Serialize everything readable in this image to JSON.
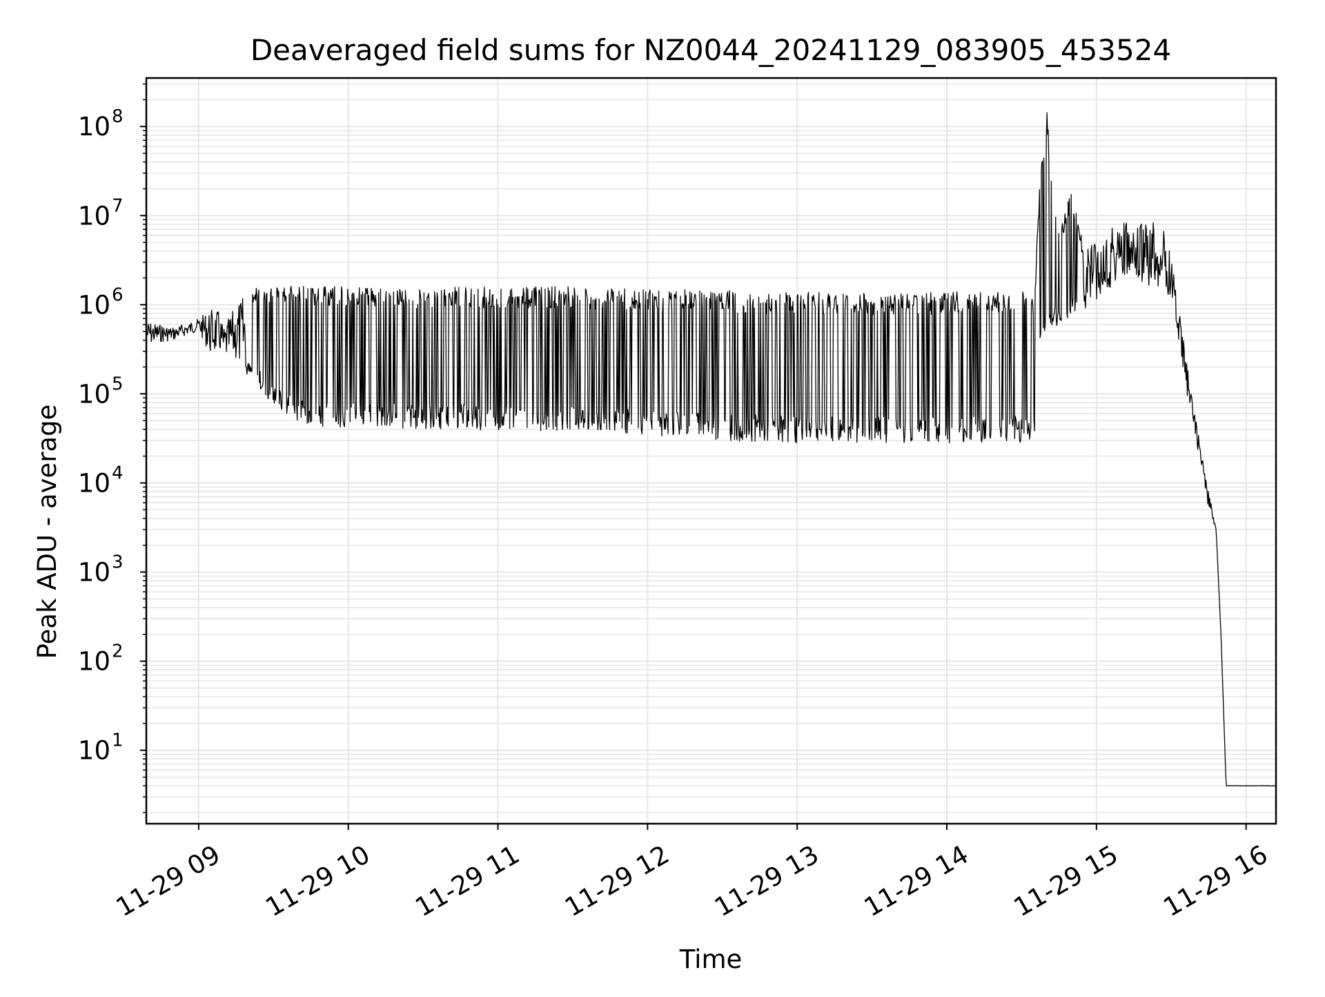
{
  "chart_data": {
    "type": "line",
    "title": "Deaveraged field sums for NZ0044_20241129_083905_453524",
    "xlabel": "Time",
    "ylabel": "Peak ADU - average",
    "y_scale": "log",
    "ylim": [
      1.5,
      350000000
    ],
    "xlim": [
      "2024-11-29T08:39",
      "2024-11-29T16:12"
    ],
    "grid": true,
    "line_color": "#000000",
    "grid_color": "#e6e6e6",
    "x_ticks": [
      {
        "value": "2024-11-29T09:00",
        "label": "11-29 09"
      },
      {
        "value": "2024-11-29T10:00",
        "label": "11-29 10"
      },
      {
        "value": "2024-11-29T11:00",
        "label": "11-29 11"
      },
      {
        "value": "2024-11-29T12:00",
        "label": "11-29 12"
      },
      {
        "value": "2024-11-29T13:00",
        "label": "11-29 13"
      },
      {
        "value": "2024-11-29T14:00",
        "label": "11-29 14"
      },
      {
        "value": "2024-11-29T15:00",
        "label": "11-29 15"
      },
      {
        "value": "2024-11-29T16:00",
        "label": "11-29 16"
      }
    ],
    "y_ticks": [
      {
        "value": 10,
        "base": "10",
        "exp": "1"
      },
      {
        "value": 100,
        "base": "10",
        "exp": "2"
      },
      {
        "value": 1000,
        "base": "10",
        "exp": "3"
      },
      {
        "value": 10000,
        "base": "10",
        "exp": "4"
      },
      {
        "value": 100000,
        "base": "10",
        "exp": "5"
      },
      {
        "value": 1000000,
        "base": "10",
        "exp": "6"
      },
      {
        "value": 10000000,
        "base": "10",
        "exp": "7"
      },
      {
        "value": 100000000,
        "base": "10",
        "exp": "8"
      }
    ],
    "series": [
      {
        "x": [
          "2024-11-29T08:39",
          "2024-11-29T08:45",
          "2024-11-29T08:50",
          "2024-11-29T08:55",
          "2024-11-29T09:00",
          "2024-11-29T09:05",
          "2024-11-29T09:08",
          "2024-11-29T09:10",
          "2024-11-29T09:15",
          "2024-11-29T09:20",
          "2024-11-29T09:25",
          "2024-11-29T09:30",
          "2024-11-29T09:35",
          "2024-11-29T09:40",
          "2024-11-29T09:45",
          "2024-11-29T09:50",
          "2024-11-29T09:55",
          "2024-11-29T10:00",
          "2024-11-29T10:30",
          "2024-11-29T11:00",
          "2024-11-29T11:30",
          "2024-11-29T12:00",
          "2024-11-29T12:30",
          "2024-11-29T13:00",
          "2024-11-29T13:30",
          "2024-11-29T14:00",
          "2024-11-29T14:30",
          "2024-11-29T14:35",
          "2024-11-29T14:38",
          "2024-11-29T14:40",
          "2024-11-29T14:45",
          "2024-11-29T14:50",
          "2024-11-29T14:55",
          "2024-11-29T15:00",
          "2024-11-29T15:05",
          "2024-11-29T15:10",
          "2024-11-29T15:15",
          "2024-11-29T15:20",
          "2024-11-29T15:25",
          "2024-11-29T15:30",
          "2024-11-29T15:35",
          "2024-11-29T15:40",
          "2024-11-29T15:45",
          "2024-11-29T15:48",
          "2024-11-29T15:50",
          "2024-11-29T15:52",
          "2024-11-29T15:53",
          "2024-11-29T15:54",
          "2024-11-29T15:55",
          "2024-11-29T16:00",
          "2024-11-29T16:12"
        ],
        "y_low": [
          350000,
          380000,
          400000,
          450000,
          500000,
          260000,
          300000,
          250000,
          230000,
          150000,
          110000,
          70000,
          58000,
          50000,
          45000,
          43000,
          42000,
          42000,
          40000,
          39000,
          38000,
          34000,
          30000,
          28000,
          28000,
          28000,
          28000,
          30000,
          500000,
          450000,
          600000,
          750000,
          900000,
          1100000,
          1500000,
          2000000,
          1500000,
          1500000,
          1400000,
          1200000,
          150000,
          30000,
          5000,
          3000,
          180,
          4,
          4,
          4,
          4,
          4,
          4
        ],
        "y_high": [
          650000,
          600000,
          560000,
          620000,
          700000,
          900000,
          850000,
          550000,
          1000000,
          1500000,
          1600000,
          1600000,
          1650000,
          1650000,
          1600000,
          1600000,
          1600000,
          1600000,
          1550000,
          1600000,
          1600000,
          1500000,
          1450000,
          1400000,
          1350000,
          1400000,
          1400000,
          1400000,
          55000000,
          160000000,
          6000000,
          20000000,
          4500000,
          5000000,
          8000000,
          10000000,
          7000000,
          9000000,
          10000000,
          4000000,
          400000,
          50000,
          8000,
          3000,
          180,
          4,
          4,
          4,
          4,
          4,
          4
        ]
      }
    ]
  }
}
